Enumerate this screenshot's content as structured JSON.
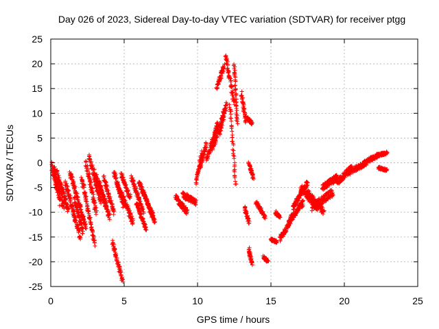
{
  "chart_data": {
    "type": "scatter",
    "title": "Day 026 of 2023, Sidereal Day-to-day VTEC variation (SDTVAR) for receiver ptgg",
    "xlabel": "GPS time / hours",
    "ylabel": "SDTVAR / TECUs",
    "xlim": [
      0,
      25
    ],
    "ylim": [
      -25,
      25
    ],
    "xticks": [
      0,
      5,
      10,
      15,
      20,
      25
    ],
    "yticks": [
      -25,
      -20,
      -15,
      -10,
      -5,
      0,
      5,
      10,
      15,
      20,
      25
    ],
    "grid": true,
    "marker": "plus",
    "color": "#ff0000",
    "segments": [
      {
        "x0": 0.05,
        "x1": 0.9,
        "y0": -1.0,
        "y1": -9.0,
        "spread": 2.5
      },
      {
        "x0": 0.2,
        "x1": 0.6,
        "y0": -0.5,
        "y1": -8.0,
        "spread": 2.0
      },
      {
        "x0": 0.4,
        "x1": 1.2,
        "y0": -2.0,
        "y1": -9.5,
        "spread": 1.5
      },
      {
        "x0": 1.0,
        "x1": 2.0,
        "y0": -4.0,
        "y1": -15.0,
        "spread": 1.5
      },
      {
        "x0": 1.3,
        "x1": 2.4,
        "y0": -2.0,
        "y1": -13.0,
        "spread": 1.2
      },
      {
        "x0": 1.6,
        "x1": 2.2,
        "y0": -7.0,
        "y1": -14.0,
        "spread": 1.0
      },
      {
        "x0": 2.1,
        "x1": 3.0,
        "y0": -3.0,
        "y1": -16.5,
        "spread": 1.2
      },
      {
        "x0": 2.4,
        "x1": 3.1,
        "y0": 0.0,
        "y1": -10.0,
        "spread": 1.5
      },
      {
        "x0": 2.6,
        "x1": 3.4,
        "y0": 1.5,
        "y1": -8.0,
        "spread": 1.2
      },
      {
        "x0": 3.0,
        "x1": 3.8,
        "y0": -2.0,
        "y1": -9.0,
        "spread": 1.5
      },
      {
        "x0": 3.3,
        "x1": 4.0,
        "y0": -4.0,
        "y1": -11.0,
        "spread": 1.2
      },
      {
        "x0": 3.6,
        "x1": 4.3,
        "y0": -3.0,
        "y1": -10.0,
        "spread": 1.0
      },
      {
        "x0": 4.2,
        "x1": 4.9,
        "y0": -16.0,
        "y1": -24.0,
        "spread": 1.0
      },
      {
        "x0": 4.3,
        "x1": 5.0,
        "y0": -2.0,
        "y1": -9.0,
        "spread": 1.2
      },
      {
        "x0": 4.5,
        "x1": 5.6,
        "y0": -4.0,
        "y1": -12.0,
        "spread": 1.2
      },
      {
        "x0": 4.8,
        "x1": 5.4,
        "y0": -2.5,
        "y1": -7.0,
        "spread": 1.0
      },
      {
        "x0": 5.5,
        "x1": 6.3,
        "y0": -3.0,
        "y1": -10.0,
        "spread": 1.0
      },
      {
        "x0": 5.8,
        "x1": 6.5,
        "y0": -8.0,
        "y1": -13.5,
        "spread": 0.8
      },
      {
        "x0": 6.0,
        "x1": 7.0,
        "y0": -4.0,
        "y1": -11.0,
        "spread": 1.0
      },
      {
        "x0": 6.3,
        "x1": 7.1,
        "y0": -6.0,
        "y1": -12.0,
        "spread": 0.8
      },
      {
        "x0": 8.5,
        "x1": 9.3,
        "y0": -7.0,
        "y1": -10.0,
        "spread": 1.2
      },
      {
        "x0": 9.0,
        "x1": 9.9,
        "y0": -6.5,
        "y1": -8.0,
        "spread": 1.2
      },
      {
        "x0": 9.9,
        "x1": 10.3,
        "y0": -4.0,
        "y1": 2.0,
        "spread": 1.0
      },
      {
        "x0": 10.2,
        "x1": 10.6,
        "y0": -1.0,
        "y1": 4.0,
        "spread": 0.8
      },
      {
        "x0": 10.6,
        "x1": 11.4,
        "y0": 0.5,
        "y1": 8.0,
        "spread": 1.2
      },
      {
        "x0": 11.0,
        "x1": 11.8,
        "y0": 3.0,
        "y1": 10.0,
        "spread": 1.5
      },
      {
        "x0": 11.3,
        "x1": 11.8,
        "y0": 15.0,
        "y1": 19.5,
        "spread": 1.0
      },
      {
        "x0": 11.5,
        "x1": 12.0,
        "y0": 6.0,
        "y1": 12.0,
        "spread": 1.2
      },
      {
        "x0": 11.9,
        "x1": 12.5,
        "y0": 22.0,
        "y1": 12.0,
        "spread": 1.2
      },
      {
        "x0": 12.2,
        "x1": 12.6,
        "y0": 12.0,
        "y1": -4.5,
        "spread": 1.0
      },
      {
        "x0": 12.5,
        "x1": 12.7,
        "y0": 20.0,
        "y1": 8.0,
        "spread": 0.8
      },
      {
        "x0": 13.0,
        "x1": 13.3,
        "y0": 14.0,
        "y1": 8.0,
        "spread": 0.8
      },
      {
        "x0": 13.4,
        "x1": 13.7,
        "y0": 9.0,
        "y1": 8.0,
        "spread": 0.6
      },
      {
        "x0": 13.5,
        "x1": 13.8,
        "y0": 0.0,
        "y1": -3.0,
        "spread": 0.8
      },
      {
        "x0": 13.2,
        "x1": 13.5,
        "y0": -9.0,
        "y1": -12.0,
        "spread": 0.8
      },
      {
        "x0": 13.5,
        "x1": 13.7,
        "y0": -17.5,
        "y1": -20.5,
        "spread": 0.8
      },
      {
        "x0": 14.0,
        "x1": 14.6,
        "y0": -8.0,
        "y1": -11.0,
        "spread": 0.8
      },
      {
        "x0": 14.5,
        "x1": 14.8,
        "y0": -19.0,
        "y1": -20.0,
        "spread": 0.5
      },
      {
        "x0": 15.0,
        "x1": 15.4,
        "y0": -15.5,
        "y1": -16.0,
        "spread": 0.5
      },
      {
        "x0": 15.3,
        "x1": 15.6,
        "y0": -10.0,
        "y1": -11.0,
        "spread": 0.6
      },
      {
        "x0": 15.6,
        "x1": 16.3,
        "y0": -15.5,
        "y1": -12.0,
        "spread": 1.0
      },
      {
        "x0": 16.2,
        "x1": 17.2,
        "y0": -12.0,
        "y1": -8.0,
        "spread": 1.2
      },
      {
        "x0": 16.5,
        "x1": 17.5,
        "y0": -9.0,
        "y1": -4.0,
        "spread": 1.0
      },
      {
        "x0": 17.0,
        "x1": 18.2,
        "y0": -5.0,
        "y1": -9.0,
        "spread": 1.5
      },
      {
        "x0": 17.5,
        "x1": 18.6,
        "y0": -6.0,
        "y1": -10.0,
        "spread": 1.2
      },
      {
        "x0": 17.8,
        "x1": 19.2,
        "y0": -9.0,
        "y1": -6.0,
        "spread": 1.5
      },
      {
        "x0": 18.5,
        "x1": 19.5,
        "y0": -5.0,
        "y1": -3.0,
        "spread": 1.2
      },
      {
        "x0": 19.5,
        "x1": 20.5,
        "y0": -4.0,
        "y1": -1.0,
        "spread": 1.2
      },
      {
        "x0": 20.3,
        "x1": 21.5,
        "y0": -2.0,
        "y1": 0.0,
        "spread": 1.0
      },
      {
        "x0": 21.3,
        "x1": 22.3,
        "y0": 0.0,
        "y1": 1.5,
        "spread": 0.8
      },
      {
        "x0": 22.2,
        "x1": 22.9,
        "y0": 1.5,
        "y1": 2.0,
        "spread": 0.6
      },
      {
        "x0": 22.3,
        "x1": 22.9,
        "y0": -1.0,
        "y1": -1.5,
        "spread": 0.5
      }
    ]
  }
}
